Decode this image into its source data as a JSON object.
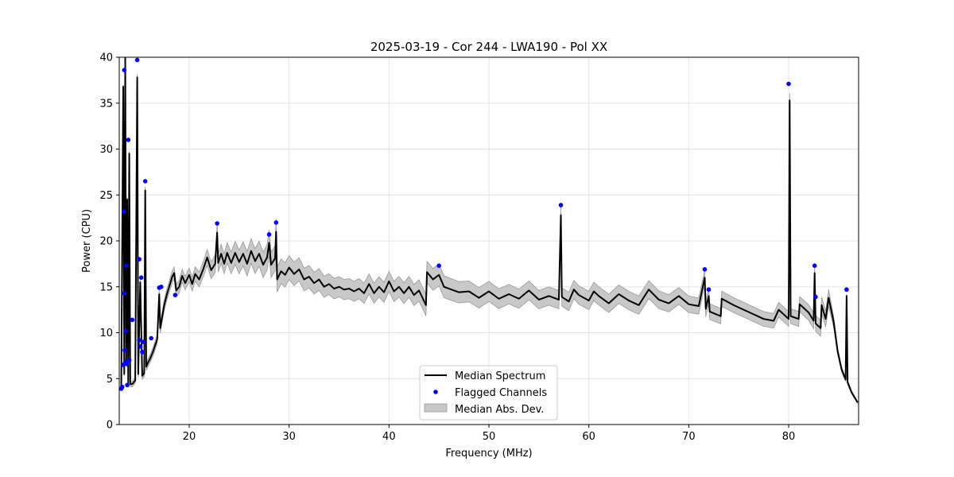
{
  "chart_data": {
    "type": "line",
    "title": "2025-03-19 - Cor 244 - LWA190 - Pol XX",
    "xlabel": "Frequency (MHz)",
    "ylabel": "Power (CPU)",
    "xlim": [
      13.0,
      87.0
    ],
    "ylim": [
      0,
      40
    ],
    "xticks": [
      20,
      30,
      40,
      50,
      60,
      70,
      80
    ],
    "yticks": [
      0,
      5,
      10,
      15,
      20,
      25,
      30,
      35,
      40
    ],
    "grid": true,
    "legend_position": "lower-center",
    "legend": {
      "median": "Median Spectrum",
      "flagged": "Flagged Channels",
      "mad": "Median Abs. Dev."
    },
    "colors": {
      "median": "#000000",
      "flagged": "#0000ff",
      "mad_fill": "#c8c8c8",
      "mad_edge": "#999999",
      "grid": "#e5e5e5"
    },
    "series": [
      {
        "name": "Median Spectrum",
        "kind": "line",
        "points": [
          [
            13.2,
            3.9
          ],
          [
            13.4,
            36.8
          ],
          [
            13.5,
            5.5
          ],
          [
            13.6,
            40.0
          ],
          [
            13.7,
            6.5
          ],
          [
            13.8,
            24.5
          ],
          [
            13.9,
            4.3
          ],
          [
            14.0,
            29.5
          ],
          [
            14.1,
            4.4
          ],
          [
            14.3,
            4.4
          ],
          [
            14.6,
            4.8
          ],
          [
            14.8,
            37.8
          ],
          [
            14.9,
            5.5
          ],
          [
            15.1,
            15.5
          ],
          [
            15.3,
            5.3
          ],
          [
            15.5,
            5.6
          ],
          [
            15.6,
            25.5
          ],
          [
            15.7,
            6.3
          ],
          [
            15.9,
            6.8
          ],
          [
            16.1,
            7.2
          ],
          [
            16.4,
            8.0
          ],
          [
            16.8,
            9.3
          ],
          [
            17.0,
            14.2
          ],
          [
            17.1,
            10.5
          ],
          [
            17.5,
            13.0
          ],
          [
            17.8,
            14.3
          ],
          [
            18.0,
            15.0
          ],
          [
            18.3,
            16.1
          ],
          [
            18.5,
            16.5
          ],
          [
            18.7,
            14.6
          ],
          [
            19.0,
            15.0
          ],
          [
            19.3,
            16.2
          ],
          [
            19.6,
            15.4
          ],
          [
            20.0,
            16.3
          ],
          [
            20.3,
            15.3
          ],
          [
            20.6,
            16.4
          ],
          [
            21.0,
            15.8
          ],
          [
            21.4,
            16.9
          ],
          [
            21.8,
            18.2
          ],
          [
            22.2,
            16.8
          ],
          [
            22.6,
            17.5
          ],
          [
            22.8,
            20.9
          ],
          [
            22.9,
            17.6
          ],
          [
            23.2,
            18.6
          ],
          [
            23.5,
            17.5
          ],
          [
            23.8,
            18.7
          ],
          [
            24.2,
            17.6
          ],
          [
            24.6,
            18.7
          ],
          [
            25.0,
            17.7
          ],
          [
            25.4,
            18.6
          ],
          [
            25.8,
            17.5
          ],
          [
            26.2,
            18.9
          ],
          [
            26.6,
            17.8
          ],
          [
            27.0,
            18.6
          ],
          [
            27.4,
            17.4
          ],
          [
            27.8,
            18.2
          ],
          [
            28.0,
            19.8
          ],
          [
            28.2,
            17.4
          ],
          [
            28.6,
            18.1
          ],
          [
            28.7,
            21.0
          ],
          [
            28.8,
            15.8
          ],
          [
            29.2,
            16.7
          ],
          [
            29.6,
            16.3
          ],
          [
            30.0,
            17.1
          ],
          [
            30.5,
            16.4
          ],
          [
            31.0,
            16.9
          ],
          [
            31.5,
            15.8
          ],
          [
            32.0,
            16.1
          ],
          [
            32.5,
            15.4
          ],
          [
            33.0,
            15.8
          ],
          [
            33.5,
            15.0
          ],
          [
            34.0,
            15.3
          ],
          [
            34.5,
            14.8
          ],
          [
            35.0,
            15.0
          ],
          [
            35.5,
            14.7
          ],
          [
            36.0,
            14.8
          ],
          [
            36.5,
            14.5
          ],
          [
            37.0,
            14.8
          ],
          [
            37.5,
            14.3
          ],
          [
            38.0,
            15.3
          ],
          [
            38.5,
            14.3
          ],
          [
            39.0,
            15.0
          ],
          [
            39.5,
            14.4
          ],
          [
            40.0,
            15.6
          ],
          [
            40.5,
            14.5
          ],
          [
            41.0,
            15.0
          ],
          [
            41.5,
            14.3
          ],
          [
            42.0,
            15.0
          ],
          [
            42.5,
            14.1
          ],
          [
            43.0,
            14.6
          ],
          [
            43.7,
            13.0
          ],
          [
            43.8,
            16.6
          ],
          [
            44.4,
            15.8
          ],
          [
            45.0,
            16.3
          ],
          [
            45.5,
            15.0
          ],
          [
            46.0,
            14.8
          ],
          [
            47.0,
            14.4
          ],
          [
            48.0,
            14.5
          ],
          [
            49.0,
            13.8
          ],
          [
            50.0,
            14.5
          ],
          [
            51.0,
            13.7
          ],
          [
            52.0,
            14.2
          ],
          [
            53.0,
            13.7
          ],
          [
            54.0,
            14.6
          ],
          [
            55.0,
            13.6
          ],
          [
            56.0,
            14.0
          ],
          [
            57.0,
            13.6
          ],
          [
            57.2,
            22.8
          ],
          [
            57.3,
            13.9
          ],
          [
            58.0,
            13.4
          ],
          [
            58.5,
            14.7
          ],
          [
            59.0,
            14.1
          ],
          [
            60.0,
            13.5
          ],
          [
            60.5,
            14.5
          ],
          [
            61.0,
            14.0
          ],
          [
            62.0,
            13.2
          ],
          [
            63.0,
            14.2
          ],
          [
            64.0,
            13.5
          ],
          [
            65.0,
            13.0
          ],
          [
            66.0,
            14.7
          ],
          [
            67.0,
            13.6
          ],
          [
            68.0,
            13.2
          ],
          [
            69.0,
            14.0
          ],
          [
            70.0,
            13.1
          ],
          [
            71.0,
            12.9
          ],
          [
            71.6,
            16.0
          ],
          [
            71.7,
            12.6
          ],
          [
            72.0,
            14.0
          ],
          [
            72.1,
            12.3
          ],
          [
            73.2,
            11.8
          ],
          [
            73.3,
            13.7
          ],
          [
            74.5,
            13.0
          ],
          [
            75.5,
            12.5
          ],
          [
            76.5,
            12.0
          ],
          [
            77.5,
            11.5
          ],
          [
            78.5,
            11.3
          ],
          [
            79.0,
            12.5
          ],
          [
            80.0,
            11.5
          ],
          [
            80.1,
            35.3
          ],
          [
            80.2,
            11.8
          ],
          [
            81.0,
            11.5
          ],
          [
            81.1,
            13.1
          ],
          [
            82.0,
            12.2
          ],
          [
            82.5,
            11.3
          ],
          [
            82.6,
            16.5
          ],
          [
            82.7,
            11.0
          ],
          [
            83.2,
            10.5
          ],
          [
            83.3,
            13.0
          ],
          [
            83.7,
            11.5
          ],
          [
            84.0,
            13.8
          ],
          [
            84.5,
            11.2
          ],
          [
            84.9,
            8.0
          ],
          [
            85.3,
            6.0
          ],
          [
            85.7,
            4.9
          ],
          [
            85.8,
            14.0
          ],
          [
            85.9,
            4.6
          ],
          [
            86.3,
            3.5
          ],
          [
            86.9,
            2.4
          ]
        ],
        "mad": [
          [
            13.2,
            0.2
          ],
          [
            16.8,
            0.5
          ],
          [
            17.5,
            0.6
          ],
          [
            19.0,
            0.7
          ],
          [
            21.0,
            0.8
          ],
          [
            23.0,
            1.0
          ],
          [
            25.0,
            1.3
          ],
          [
            28.0,
            1.4
          ],
          [
            30.0,
            1.3
          ],
          [
            35.0,
            1.1
          ],
          [
            40.0,
            1.1
          ],
          [
            45.0,
            1.2
          ],
          [
            50.0,
            1.1
          ],
          [
            55.0,
            1.0
          ],
          [
            60.0,
            1.0
          ],
          [
            65.0,
            1.0
          ],
          [
            70.0,
            0.9
          ],
          [
            75.0,
            0.8
          ],
          [
            80.0,
            0.8
          ],
          [
            84.0,
            0.9
          ],
          [
            85.0,
            0.3
          ],
          [
            86.9,
            0.1
          ]
        ]
      },
      {
        "name": "Flagged Channels",
        "kind": "scatter",
        "points": [
          [
            13.2,
            3.9
          ],
          [
            13.3,
            4.1
          ],
          [
            13.4,
            6.5
          ],
          [
            13.45,
            23.2
          ],
          [
            13.5,
            38.6
          ],
          [
            13.5,
            14.3
          ],
          [
            13.55,
            8.1
          ],
          [
            13.6,
            6.8
          ],
          [
            13.65,
            10.2
          ],
          [
            13.7,
            17.3
          ],
          [
            13.75,
            6.6
          ],
          [
            13.8,
            4.3
          ],
          [
            13.9,
            31.0
          ],
          [
            14.0,
            7.0
          ],
          [
            14.3,
            11.4
          ],
          [
            14.8,
            39.7
          ],
          [
            15.0,
            18.0
          ],
          [
            15.0,
            9.2
          ],
          [
            15.1,
            8.5
          ],
          [
            15.2,
            16.0
          ],
          [
            15.3,
            7.9
          ],
          [
            15.4,
            9.0
          ],
          [
            15.6,
            26.5
          ],
          [
            16.2,
            9.4
          ],
          [
            17.0,
            14.9
          ],
          [
            17.2,
            15.0
          ],
          [
            18.6,
            14.1
          ],
          [
            22.8,
            21.9
          ],
          [
            28.0,
            20.7
          ],
          [
            28.7,
            22.0
          ],
          [
            45.0,
            17.3
          ],
          [
            57.2,
            23.9
          ],
          [
            71.6,
            16.9
          ],
          [
            72.0,
            14.7
          ],
          [
            80.0,
            37.1
          ],
          [
            82.6,
            17.3
          ],
          [
            82.7,
            13.9
          ],
          [
            85.8,
            14.7
          ]
        ]
      },
      {
        "name": "Median Abs. Dev.",
        "kind": "band"
      }
    ]
  }
}
